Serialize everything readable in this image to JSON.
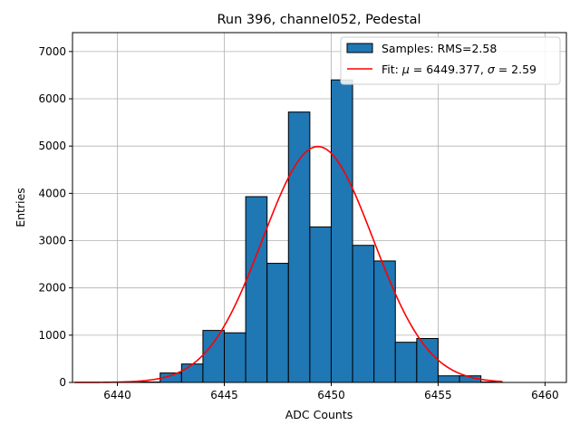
{
  "chart_data": {
    "type": "bar",
    "title": "Run 396, channel052, Pedestal",
    "xlabel": "ADC Counts",
    "ylabel": "Entries",
    "xlim": [
      6437.9,
      6461.0
    ],
    "ylim": [
      0,
      7400
    ],
    "xticks": [
      6440,
      6445,
      6450,
      6455,
      6460
    ],
    "yticks": [
      0,
      1000,
      2000,
      3000,
      4000,
      5000,
      6000,
      7000
    ],
    "grid": true,
    "legend_position": "top-right",
    "bar_color": "#1f77b4",
    "fit_color": "#ff0000",
    "bins": [
      {
        "x0": 6441.0,
        "x1": 6442.0,
        "value": 10
      },
      {
        "x0": 6442.0,
        "x1": 6443.0,
        "value": 200
      },
      {
        "x0": 6443.0,
        "x1": 6444.0,
        "value": 390
      },
      {
        "x0": 6444.0,
        "x1": 6445.0,
        "value": 1100
      },
      {
        "x0": 6445.0,
        "x1": 6446.0,
        "value": 1050
      },
      {
        "x0": 6446.0,
        "x1": 6447.0,
        "value": 3930
      },
      {
        "x0": 6447.0,
        "x1": 6448.0,
        "value": 2520
      },
      {
        "x0": 6448.0,
        "x1": 6449.0,
        "value": 5720
      },
      {
        "x0": 6449.0,
        "x1": 6450.0,
        "value": 3290
      },
      {
        "x0": 6450.0,
        "x1": 6451.0,
        "value": 6400
      },
      {
        "x0": 6451.0,
        "x1": 6452.0,
        "value": 2900
      },
      {
        "x0": 6452.0,
        "x1": 6453.0,
        "value": 2570
      },
      {
        "x0": 6453.0,
        "x1": 6454.0,
        "value": 850
      },
      {
        "x0": 6454.0,
        "x1": 6455.0,
        "value": 930
      },
      {
        "x0": 6455.0,
        "x1": 6456.0,
        "value": 140
      },
      {
        "x0": 6456.0,
        "x1": 6457.0,
        "value": 140
      },
      {
        "x0": 6457.0,
        "x1": 6458.0,
        "value": 10
      }
    ],
    "fit": {
      "mu": 6449.377,
      "sigma": 2.59,
      "amplitude": 4990,
      "x_range": [
        6438.0,
        6458.0
      ]
    },
    "legend": {
      "samples_label": "Samples: RMS=2.58",
      "fit_label_prefix": "Fit: ",
      "fit_label_mu": "μ",
      "fit_label_mu_value": " = 6449.377, ",
      "fit_label_sigma": "σ",
      "fit_label_sigma_value": " = 2.59"
    }
  }
}
